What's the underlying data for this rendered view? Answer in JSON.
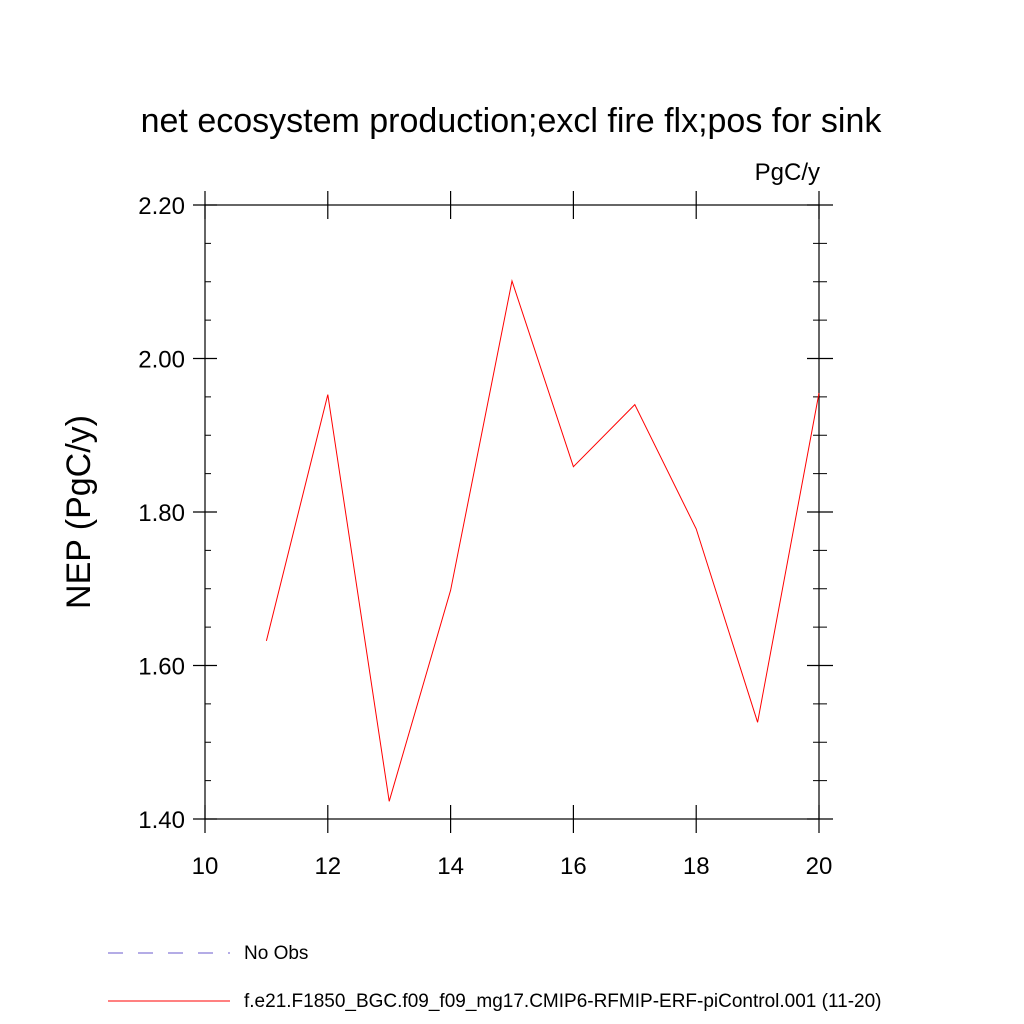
{
  "chart_data": {
    "type": "line",
    "title": "net ecosystem production;excl fire flx;pos for sink",
    "units": "PgC/y",
    "xlabel": "",
    "ylabel": "NEP  (PgC/y)",
    "xlim": [
      10,
      20
    ],
    "ylim": [
      1.4,
      2.2
    ],
    "x_ticks": [
      "10",
      "12",
      "14",
      "16",
      "18",
      "20"
    ],
    "y_ticks": [
      "1.40",
      "1.60",
      "1.80",
      "2.00",
      "2.20"
    ],
    "grid": false,
    "legend_position": "bottom",
    "series": [
      {
        "name": "f.e21.F1850_BGC.f09_f09_mg17.CMIP6-RFMIP-ERF-piControl.001 (11-20)",
        "color": "#ff0000",
        "x": [
          11,
          12,
          13,
          14,
          15,
          16,
          17,
          18,
          19,
          20
        ],
        "y": [
          1.632,
          1.953,
          1.423,
          1.698,
          2.101,
          1.859,
          1.94,
          1.778,
          1.526,
          1.955
        ]
      }
    ],
    "legend": [
      {
        "label": "No Obs",
        "color": "#6a5acd",
        "style": "dashed"
      },
      {
        "label": "f.e21.F1850_BGC.f09_f09_mg17.CMIP6-RFMIP-ERF-piControl.001 (11-20)",
        "color": "#ff0000",
        "style": "solid"
      }
    ]
  }
}
